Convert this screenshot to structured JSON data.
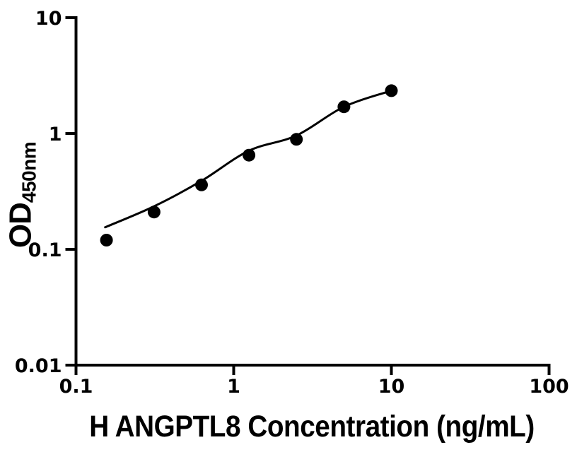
{
  "figure": {
    "background": "#ffffff",
    "foreground": "#000000"
  },
  "chart_data": {
    "type": "scatter",
    "title": "",
    "xlabel": "H ANGPTL8 Concentration (ng/mL)",
    "ylabel": "OD",
    "ylabel_subscript": "450nm",
    "x_scale": "log",
    "y_scale": "log",
    "xlim": [
      0.1,
      100
    ],
    "ylim": [
      0.01,
      10
    ],
    "x_tick_values": [
      0.1,
      1,
      10,
      100
    ],
    "x_tick_labels": [
      "0.1",
      "1",
      "10",
      "100"
    ],
    "y_tick_values": [
      10,
      1,
      0.1,
      0.01
    ],
    "y_tick_labels": [
      "10",
      "1",
      "0.1",
      "0.01"
    ],
    "grid": false,
    "legend": "none",
    "marker_color": "#000000",
    "line_color": "#000000",
    "series": [
      {
        "x": [
          0.156,
          0.3125,
          0.625,
          1.25,
          2.5,
          5,
          10
        ],
        "y": [
          0.12,
          0.21,
          0.36,
          0.65,
          0.89,
          1.7,
          2.34
        ]
      }
    ],
    "fit_curve": {
      "x": [
        0.153,
        0.3125,
        0.625,
        1.25,
        2.5,
        5,
        10
      ],
      "y": [
        0.155,
        0.235,
        0.39,
        0.71,
        0.96,
        1.7,
        2.34
      ]
    }
  }
}
